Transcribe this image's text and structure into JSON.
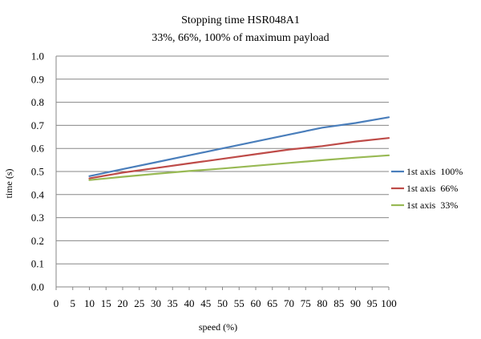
{
  "chart_data": {
    "type": "line",
    "title": "Stopping time HSR048A1",
    "subtitle": "33%, 66%, 100% of maximum payload",
    "xlabel": "speed (%)",
    "ylabel": "time (s)",
    "xlim": [
      0,
      100
    ],
    "ylim": [
      0,
      1.0
    ],
    "x_ticks": [
      "0",
      "5",
      "10",
      "15",
      "20",
      "25",
      "30",
      "35",
      "40",
      "45",
      "50",
      "55",
      "60",
      "65",
      "70",
      "75",
      "80",
      "85",
      "90",
      "95",
      "100"
    ],
    "y_ticks": [
      "0.0",
      "0.1",
      "0.2",
      "0.3",
      "0.4",
      "0.5",
      "0.6",
      "0.7",
      "0.8",
      "0.9",
      "1.0"
    ],
    "grid": "horizontal",
    "legend_position": "right",
    "x": [
      10,
      20,
      30,
      40,
      50,
      60,
      70,
      80,
      90,
      100
    ],
    "series": [
      {
        "name": "1st axis  100%",
        "color": "#4A7EBB",
        "values": [
          0.48,
          0.51,
          0.54,
          0.57,
          0.6,
          0.63,
          0.66,
          0.69,
          0.71,
          0.735
        ]
      },
      {
        "name": "1st axis  66%",
        "color": "#BE4B48",
        "values": [
          0.47,
          0.495,
          0.515,
          0.535,
          0.555,
          0.575,
          0.595,
          0.61,
          0.63,
          0.645
        ]
      },
      {
        "name": "1st axis  33%",
        "color": "#98B954",
        "values": [
          0.463,
          0.477,
          0.49,
          0.502,
          0.513,
          0.525,
          0.537,
          0.549,
          0.56,
          0.57
        ]
      }
    ]
  }
}
